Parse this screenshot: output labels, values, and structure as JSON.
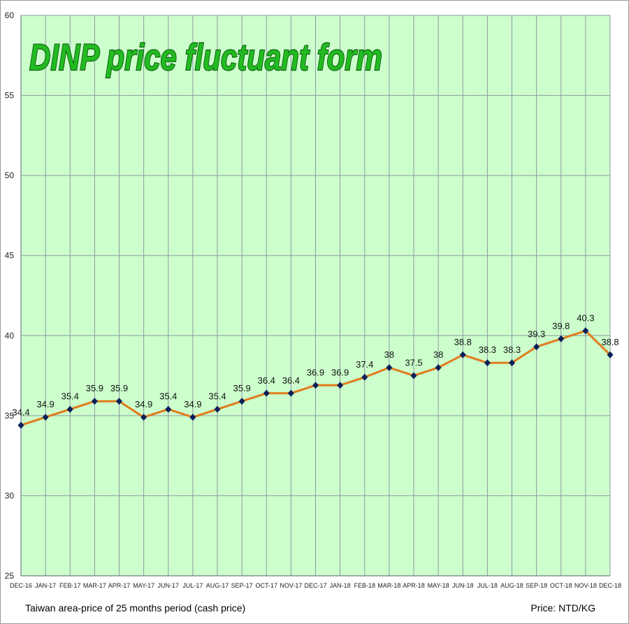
{
  "chart_data": {
    "type": "line",
    "title": "DINP price fluctuant form",
    "categories": [
      "DEC-16",
      "JAN-17",
      "FEB-17",
      "MAR-17",
      "APR-17",
      "MAY-17",
      "JUN-17",
      "JUL-17",
      "AUG-17",
      "SEP-17",
      "OCT-17",
      "NOV-17",
      "DEC-17",
      "JAN-18",
      "FEB-18",
      "MAR-18",
      "APR-18",
      "MAY-18",
      "JUN-18",
      "JUL-18",
      "AUG-18",
      "SEP-18",
      "OCT-18",
      "NOV-18",
      "DEC-18"
    ],
    "series": [
      {
        "values": [
          34.4,
          34.9,
          35.4,
          35.9,
          35.9,
          34.9,
          35.4,
          34.9,
          35.4,
          35.9,
          36.4,
          36.4,
          36.9,
          36.9,
          37.4,
          38,
          37.5,
          38,
          38.8,
          38.3,
          38.3,
          39.3,
          39.8,
          40.3,
          38.8
        ]
      }
    ],
    "value_labels": [
      "34.4",
      "34.9",
      "35.4",
      "35.9",
      "35.9",
      "34.9",
      "35.4",
      "34.9",
      "35.4",
      "35.9",
      "36.4",
      "36.4",
      "36.9",
      "36.9",
      "37.4",
      "38",
      "37.5",
      "38",
      "38.8",
      "38.3",
      "38.3",
      "39.3",
      "39.8",
      "40.3",
      "38.8"
    ],
    "ylim": [
      25,
      60
    ],
    "yticks": [
      25,
      30,
      35,
      40,
      45,
      50,
      55,
      60
    ],
    "xlabel": "",
    "ylabel": "",
    "grid": true,
    "colors": {
      "plot_bg": "#ccffcc",
      "grid": "#8c9aa3",
      "line": "#e07b1c",
      "marker": "#0b1f5a",
      "title": "#22bb22",
      "title_outline": "#0a5a0a"
    }
  },
  "footnote_left": "Taiwan area-price of 25 months period (cash price)",
  "footnote_right": "Price: NTD/KG"
}
